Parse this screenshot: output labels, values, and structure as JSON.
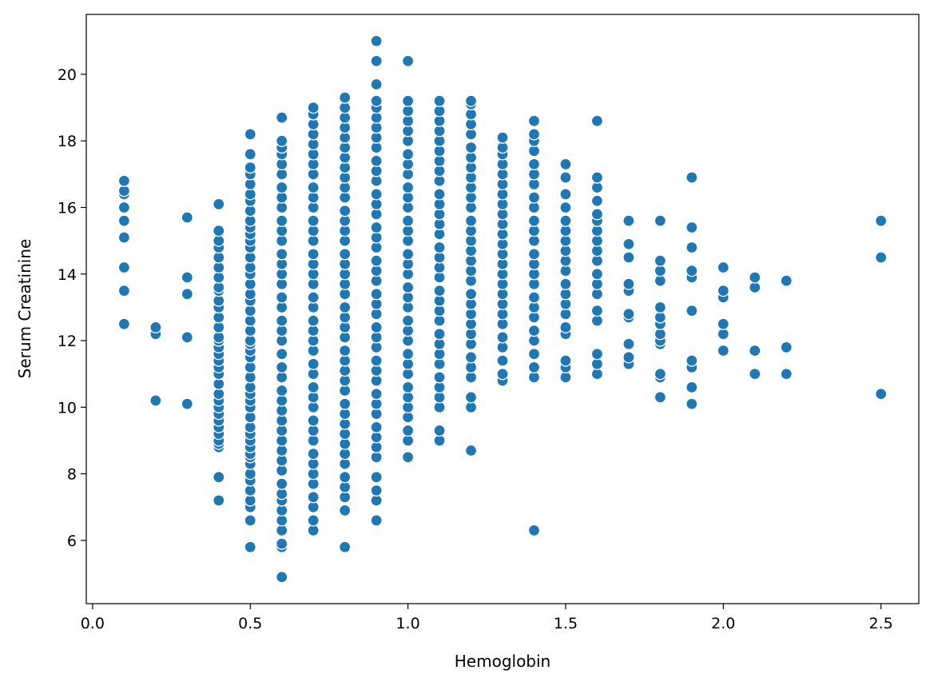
{
  "chart_data": {
    "type": "scatter",
    "title": "",
    "xlabel": "Hemoglobin",
    "ylabel": "Serum Creatinine",
    "xlim": [
      -0.02,
      2.62
    ],
    "ylim": [
      4.1,
      21.8
    ],
    "xticks": [
      "0.0",
      "0.5",
      "1.0",
      "1.5",
      "2.0",
      "2.5"
    ],
    "yticks": [
      "6",
      "8",
      "10",
      "12",
      "14",
      "16",
      "18",
      "20"
    ],
    "grid": false,
    "legend": "none",
    "marker_color": "#1f77b4",
    "columns": [
      {
        "x": 0.1,
        "y": [
          12.5,
          13.5,
          14.2,
          15.1,
          15.6,
          16.0,
          16.4,
          16.5,
          16.8
        ]
      },
      {
        "x": 0.2,
        "y": [
          10.2,
          12.2,
          12.4
        ]
      },
      {
        "x": 0.3,
        "y": [
          10.1,
          12.1,
          13.4,
          13.9,
          15.7
        ]
      },
      {
        "x": 0.4,
        "y": [
          7.2,
          7.9,
          8.8,
          8.9,
          9.0,
          9.2,
          9.4,
          9.6,
          9.8,
          10.0,
          10.2,
          10.4,
          10.7,
          11.0,
          11.2,
          11.4,
          11.6,
          11.8,
          12.0,
          12.1,
          12.4,
          12.7,
          13.0,
          13.2,
          13.5,
          13.6,
          13.9,
          14.2,
          14.5,
          14.8,
          15.0,
          15.3,
          16.1
        ]
      },
      {
        "x": 0.5,
        "y": [
          5.8,
          6.6,
          7.0,
          7.2,
          7.5,
          7.8,
          8.0,
          8.3,
          8.5,
          8.6,
          8.8,
          9.0,
          9.2,
          9.4,
          9.7,
          10.0,
          10.2,
          10.4,
          10.6,
          10.9,
          11.2,
          11.5,
          11.7,
          11.9,
          12.0,
          12.3,
          12.6,
          12.9,
          13.2,
          13.4,
          13.7,
          14.0,
          14.2,
          14.5,
          14.8,
          15.0,
          15.2,
          15.4,
          15.6,
          15.9,
          16.2,
          16.4,
          16.7,
          17.0,
          17.2,
          17.6,
          18.2
        ]
      },
      {
        "x": 0.6,
        "y": [
          4.9,
          5.8,
          5.9,
          6.3,
          6.6,
          6.9,
          7.2,
          7.4,
          7.7,
          8.1,
          8.4,
          8.7,
          9.0,
          9.3,
          9.6,
          9.9,
          10.2,
          10.5,
          10.9,
          11.2,
          11.6,
          12.0,
          12.3,
          12.6,
          13.0,
          13.3,
          13.7,
          14.0,
          14.3,
          14.6,
          15.0,
          15.3,
          15.6,
          16.0,
          16.3,
          16.6,
          17.0,
          17.3,
          17.6,
          17.8,
          18.0,
          18.7
        ]
      },
      {
        "x": 0.7,
        "y": [
          6.3,
          6.6,
          7.0,
          7.3,
          7.7,
          8.0,
          8.3,
          8.6,
          9.0,
          9.3,
          9.6,
          10.0,
          10.3,
          10.6,
          11.0,
          11.3,
          11.7,
          12.0,
          12.3,
          12.6,
          13.0,
          13.3,
          13.7,
          14.0,
          14.3,
          14.6,
          15.0,
          15.3,
          15.6,
          16.0,
          16.3,
          16.6,
          17.0,
          17.3,
          17.6,
          17.9,
          18.2,
          18.5,
          18.8,
          19.0
        ]
      },
      {
        "x": 0.8,
        "y": [
          5.8,
          6.9,
          7.3,
          7.6,
          7.9,
          8.3,
          8.6,
          8.9,
          9.2,
          9.5,
          9.8,
          10.1,
          10.5,
          10.8,
          11.1,
          11.4,
          11.7,
          12.1,
          12.4,
          12.7,
          13.0,
          13.4,
          13.7,
          14.0,
          14.3,
          14.6,
          15.0,
          15.3,
          15.6,
          15.9,
          16.3,
          16.6,
          16.9,
          17.2,
          17.5,
          17.8,
          18.1,
          18.4,
          18.7,
          19.0,
          19.3
        ]
      },
      {
        "x": 0.9,
        "y": [
          6.6,
          7.2,
          7.5,
          7.9,
          8.5,
          8.8,
          9.1,
          9.4,
          9.8,
          10.1,
          10.4,
          10.8,
          11.1,
          11.4,
          11.8,
          12.1,
          12.4,
          12.8,
          13.1,
          13.4,
          13.8,
          14.1,
          14.4,
          14.8,
          15.1,
          15.4,
          15.8,
          16.1,
          16.4,
          16.8,
          17.1,
          17.4,
          17.8,
          18.1,
          18.4,
          18.7,
          19.0,
          19.2,
          19.7,
          20.4,
          21.0
        ]
      },
      {
        "x": 1.0,
        "y": [
          8.5,
          9.0,
          9.3,
          9.7,
          10.0,
          10.3,
          10.6,
          11.0,
          11.3,
          11.6,
          12.0,
          12.3,
          12.6,
          13.0,
          13.3,
          13.6,
          14.0,
          14.3,
          14.6,
          15.0,
          15.3,
          15.6,
          16.0,
          16.3,
          16.6,
          17.0,
          17.3,
          17.6,
          18.0,
          18.3,
          18.6,
          18.9,
          19.2,
          20.4
        ]
      },
      {
        "x": 1.1,
        "y": [
          9.0,
          9.3,
          10.0,
          10.3,
          10.6,
          10.9,
          11.3,
          11.6,
          11.9,
          12.2,
          12.6,
          12.9,
          13.2,
          13.5,
          13.9,
          14.2,
          14.5,
          14.8,
          15.2,
          15.5,
          15.8,
          16.1,
          16.4,
          16.8,
          17.1,
          17.4,
          17.7,
          18.0,
          18.3,
          18.6,
          18.9,
          19.2
        ]
      },
      {
        "x": 1.2,
        "y": [
          8.7,
          10.0,
          10.3,
          10.9,
          11.2,
          11.5,
          11.9,
          12.2,
          12.5,
          12.8,
          13.1,
          13.4,
          13.8,
          14.1,
          14.4,
          14.7,
          15.0,
          15.3,
          15.6,
          16.0,
          16.3,
          16.6,
          16.9,
          17.2,
          17.5,
          17.8,
          18.2,
          18.5,
          18.8,
          19.1,
          19.2
        ]
      },
      {
        "x": 1.3,
        "y": [
          10.8,
          11.0,
          11.4,
          11.8,
          12.1,
          12.5,
          12.8,
          13.1,
          13.4,
          13.7,
          14.0,
          14.3,
          14.6,
          14.9,
          15.2,
          15.5,
          15.8,
          16.1,
          16.4,
          16.7,
          17.0,
          17.3,
          17.6,
          17.8,
          18.1
        ]
      },
      {
        "x": 1.4,
        "y": [
          6.3,
          10.9,
          11.2,
          11.6,
          12.0,
          12.3,
          12.7,
          13.0,
          13.3,
          13.7,
          14.0,
          14.3,
          14.6,
          15.0,
          15.3,
          15.6,
          16.0,
          16.3,
          16.7,
          17.0,
          17.3,
          17.7,
          18.0,
          18.2,
          18.6
        ]
      },
      {
        "x": 1.5,
        "y": [
          10.9,
          11.2,
          11.4,
          12.2,
          12.4,
          12.8,
          13.1,
          13.4,
          13.7,
          14.1,
          14.4,
          14.7,
          15.0,
          15.3,
          15.6,
          16.0,
          16.4,
          16.9,
          17.3
        ]
      },
      {
        "x": 1.6,
        "y": [
          11.0,
          11.3,
          11.6,
          12.6,
          12.9,
          13.4,
          13.7,
          14.0,
          14.4,
          14.7,
          15.0,
          15.3,
          15.6,
          15.8,
          16.2,
          16.6,
          16.9,
          18.6
        ]
      },
      {
        "x": 1.7,
        "y": [
          11.3,
          11.5,
          11.9,
          12.7,
          12.8,
          13.5,
          13.7,
          14.5,
          14.9,
          15.6
        ]
      },
      {
        "x": 1.8,
        "y": [
          10.3,
          10.9,
          11.0,
          11.9,
          12.0,
          12.2,
          12.5,
          12.7,
          13.0,
          13.8,
          14.1,
          14.4,
          15.6
        ]
      },
      {
        "x": 1.9,
        "y": [
          10.1,
          10.6,
          11.2,
          11.4,
          12.9,
          13.9,
          14.1,
          14.8,
          15.4,
          16.9
        ]
      },
      {
        "x": 2.0,
        "y": [
          11.7,
          12.2,
          12.5,
          13.3,
          13.5,
          14.2
        ]
      },
      {
        "x": 2.1,
        "y": [
          11.0,
          11.7,
          13.6,
          13.9
        ]
      },
      {
        "x": 2.2,
        "y": [
          11.0,
          11.8,
          13.8
        ]
      },
      {
        "x": 2.5,
        "y": [
          10.4,
          14.5,
          15.6
        ]
      }
    ]
  }
}
